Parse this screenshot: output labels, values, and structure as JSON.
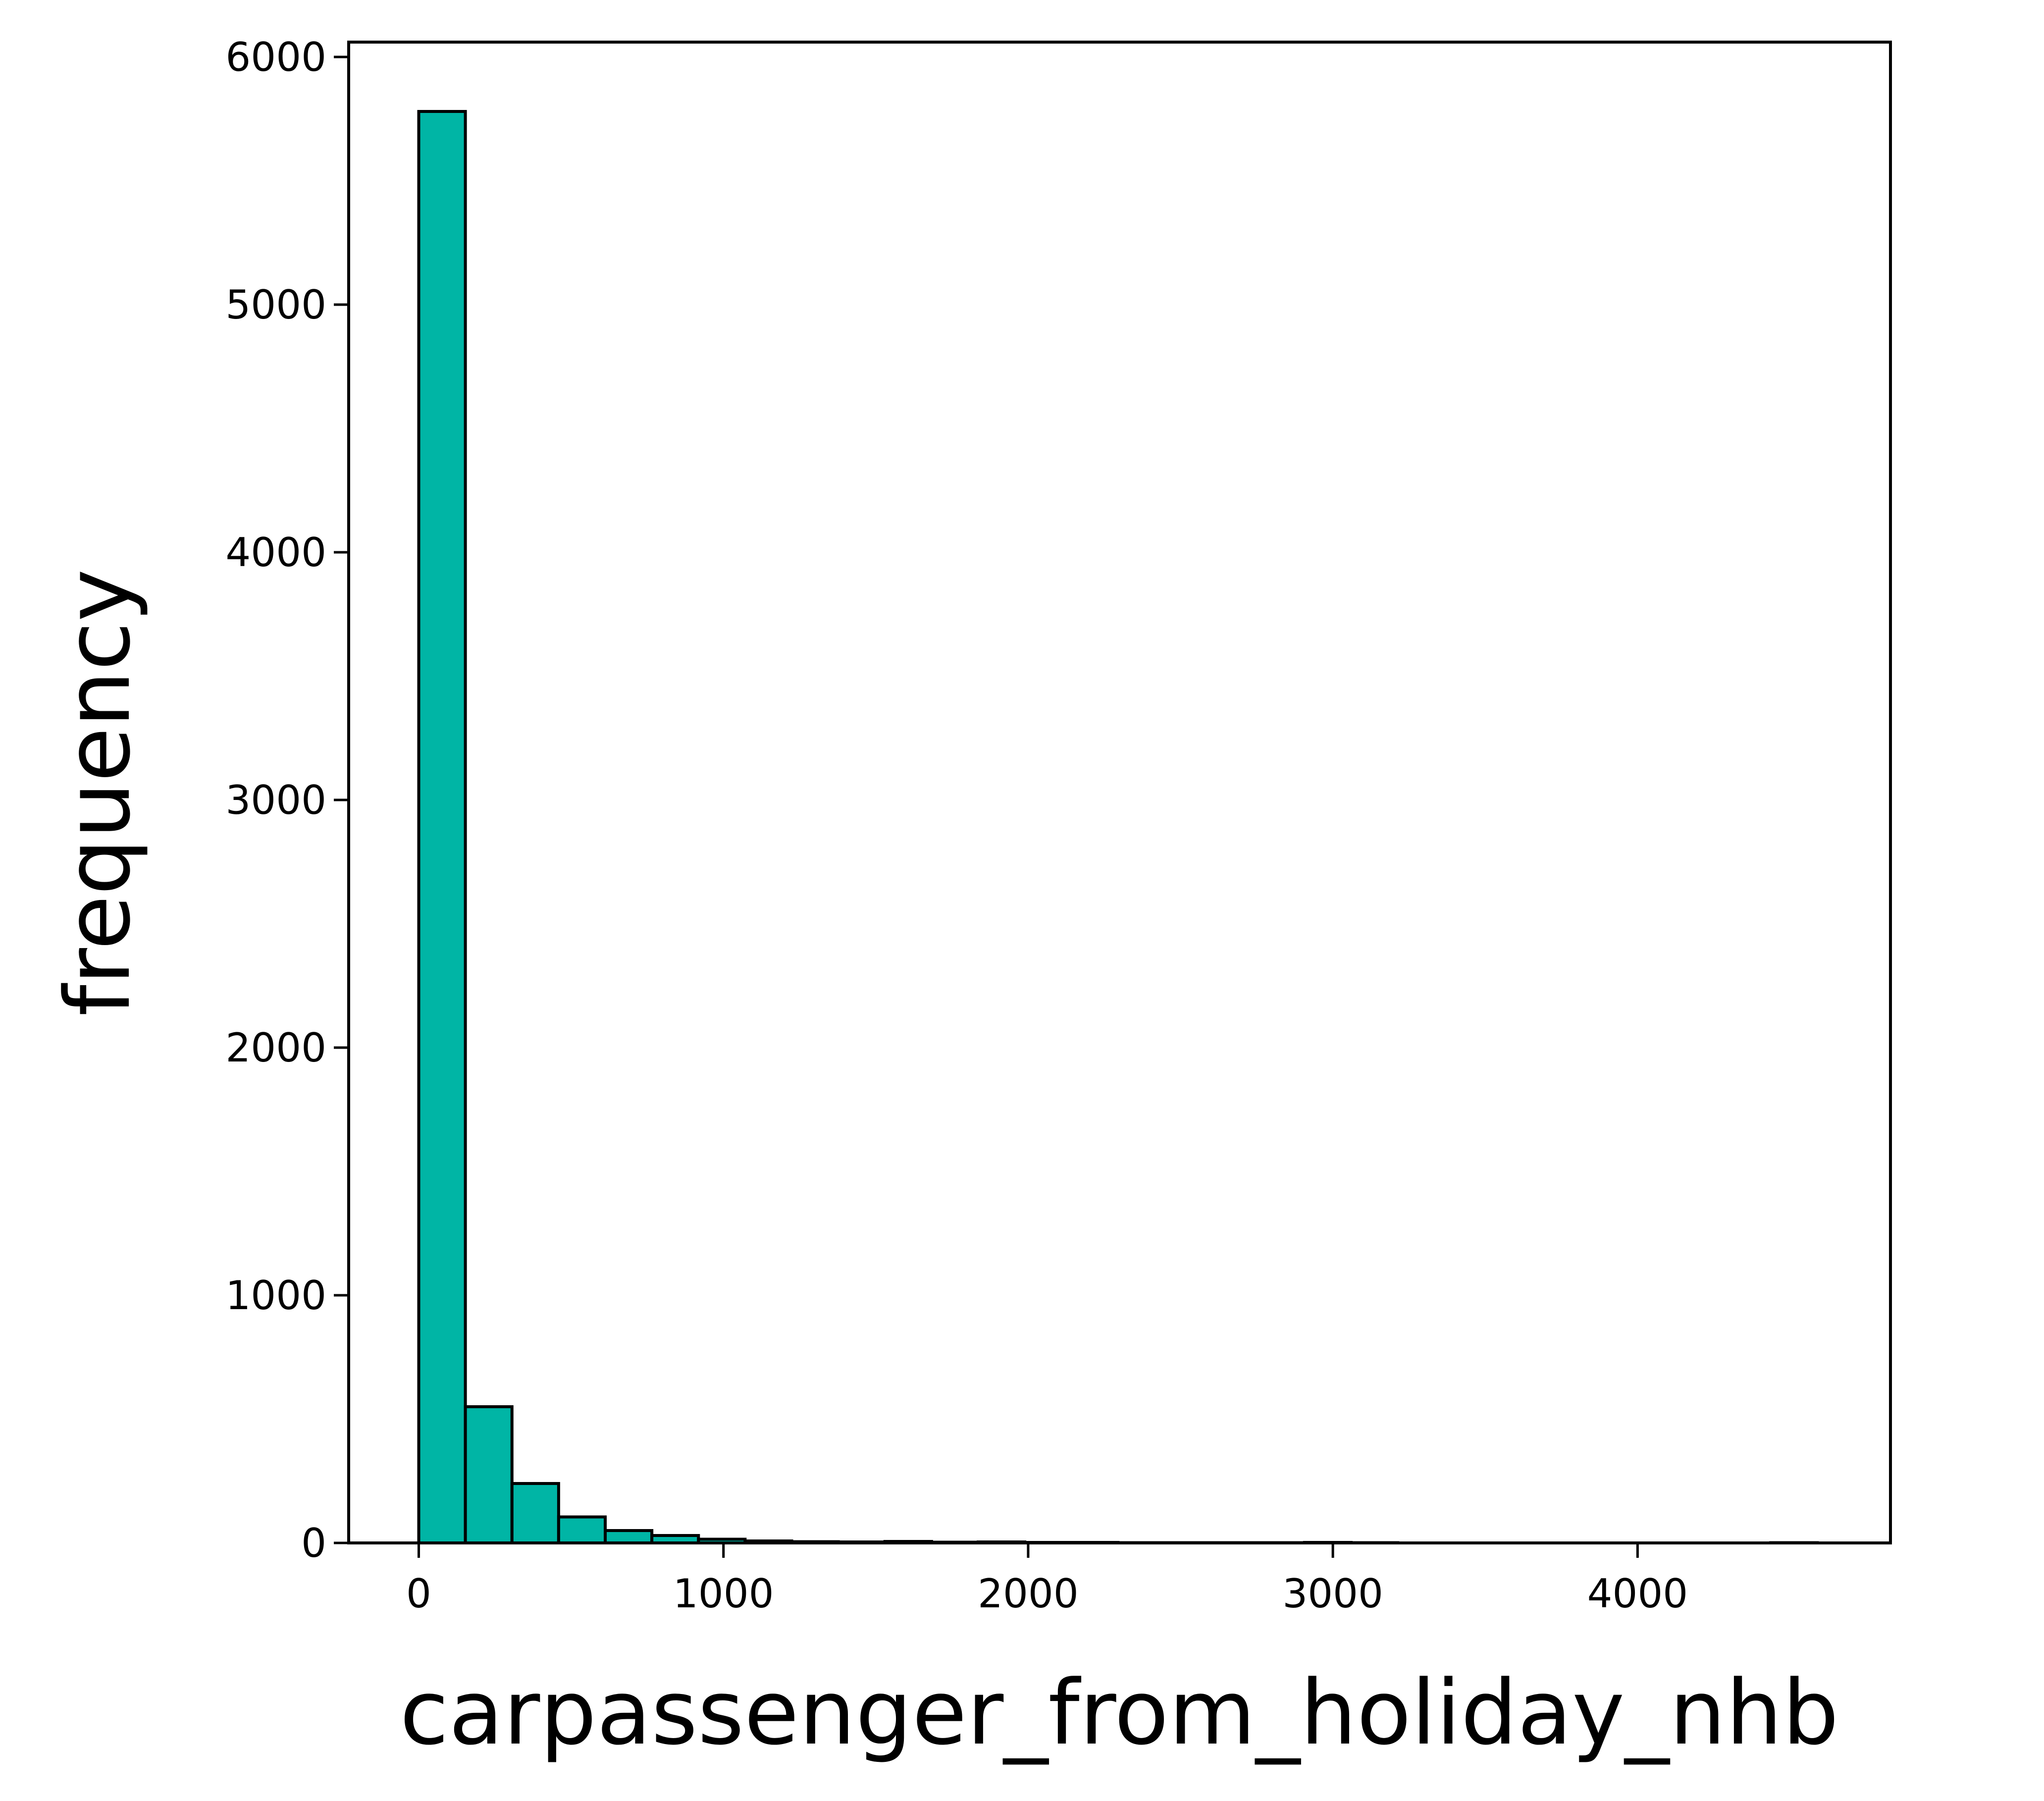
{
  "chart_data": {
    "type": "bar",
    "subtype": "histogram",
    "xlabel": "carpassenger_from_holiday_nhb",
    "ylabel": "frequency",
    "xlim": [
      -230,
      4830
    ],
    "ylim": [
      0,
      6060
    ],
    "xticks": [
      0,
      1000,
      2000,
      3000,
      4000
    ],
    "yticks": [
      0,
      1000,
      2000,
      3000,
      4000,
      5000,
      6000
    ],
    "bin_edges": [
      0,
      153,
      306,
      459,
      612,
      765,
      918,
      1071,
      1224,
      1377,
      1530,
      1683,
      1836,
      1989,
      2142,
      2295,
      2448,
      2601,
      2754,
      2907,
      3060,
      3213,
      3366,
      3519,
      3672,
      3825,
      3978,
      4131,
      4284,
      4437,
      4590
    ],
    "counts": [
      5780,
      550,
      240,
      105,
      50,
      30,
      15,
      8,
      5,
      4,
      6,
      3,
      4,
      2,
      2,
      1,
      1,
      1,
      1,
      2,
      1,
      0,
      0,
      0,
      0,
      0,
      0,
      0,
      0,
      1
    ],
    "bar_color": "#00b5a5",
    "edge_color": "#000000",
    "grid": false,
    "legend": "none"
  }
}
